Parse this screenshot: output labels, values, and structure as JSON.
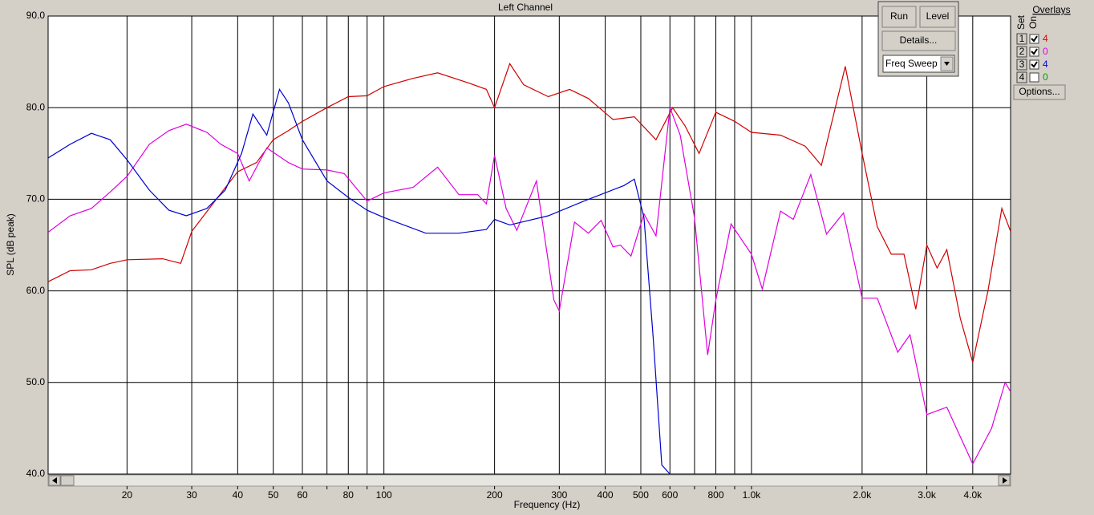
{
  "chart_data": {
    "type": "line",
    "title": "Left Channel",
    "x_label": "Frequency (Hz)",
    "y_label": "SPL (dB peak)",
    "xscale": "log",
    "xlim": [
      12.2,
      5070
    ],
    "ylim": [
      40,
      90
    ],
    "grid": true,
    "xticks": [
      20,
      30,
      40,
      50,
      60,
      80,
      100,
      200,
      300,
      400,
      500,
      600,
      800,
      {
        "value": 1000,
        "label": "1.0k"
      },
      {
        "value": 2000,
        "label": "2.0k"
      },
      {
        "value": 3000,
        "label": "3.0k"
      },
      {
        "value": 4000,
        "label": "4.0k"
      }
    ],
    "minor_xticks": [
      70,
      90,
      700,
      900
    ],
    "yticks": [
      {
        "value": 40,
        "label": "40.0"
      },
      {
        "value": 50,
        "label": "50.0"
      },
      {
        "value": 60,
        "label": "60.0"
      },
      {
        "value": 70,
        "label": "70.0"
      },
      {
        "value": 80,
        "label": "80.0"
      },
      {
        "value": 90,
        "label": "90.0"
      }
    ],
    "series": [
      {
        "color": "#d00000",
        "x": [
          12.2,
          14,
          16,
          18,
          20,
          25,
          28,
          30,
          35,
          40,
          45,
          50,
          55,
          60,
          70,
          80,
          90,
          100,
          120,
          140,
          170,
          190,
          200,
          220,
          240,
          280,
          320,
          360,
          420,
          480,
          550,
          610,
          660,
          720,
          800,
          900,
          1000,
          1200,
          1400,
          1550,
          1800,
          2000,
          2200,
          2400,
          2600,
          2800,
          3000,
          3200,
          3400,
          3700,
          4000,
          4400,
          4800,
          5070
        ],
        "values": [
          61.0,
          62.2,
          62.3,
          63.0,
          63.4,
          63.5,
          63.0,
          66.5,
          70,
          73,
          74,
          76.5,
          77.5,
          78.5,
          80,
          81.2,
          81.3,
          82.3,
          83.2,
          83.8,
          82.7,
          82.0,
          80.0,
          84.8,
          82.5,
          81.2,
          82.0,
          81.0,
          78.7,
          79.0,
          76.5,
          80.0,
          78,
          75.0,
          79.5,
          78.5,
          77.3,
          77.0,
          75.8,
          73.7,
          84.5,
          75,
          67,
          64,
          64,
          58,
          65,
          62.5,
          64.5,
          57,
          52.2,
          60,
          69,
          66.5
        ]
      },
      {
        "color": "#e000e0",
        "x": [
          12.2,
          14,
          16,
          18,
          20,
          23,
          26,
          29,
          33,
          36,
          40,
          43,
          48,
          55,
          60,
          70,
          78,
          90,
          100,
          120,
          140,
          160,
          180,
          190,
          200,
          215,
          230,
          260,
          290,
          300,
          330,
          360,
          390,
          420,
          440,
          470,
          510,
          550,
          600,
          640,
          700,
          760,
          800,
          880,
          1000,
          1070,
          1200,
          1300,
          1450,
          1600,
          1780,
          2000,
          2200,
          2500,
          2700,
          3000,
          3400,
          4000,
          4500,
          4900,
          5070
        ],
        "values": [
          66.4,
          68.2,
          69.0,
          70.8,
          72.5,
          76,
          77.5,
          78.2,
          77.3,
          76,
          75,
          72,
          75.6,
          74,
          73.3,
          73.2,
          72.8,
          69.8,
          70.7,
          71.3,
          73.5,
          70.5,
          70.5,
          69.5,
          74.8,
          69,
          66.6,
          72,
          59,
          57.8,
          67.5,
          66.3,
          67.7,
          64.8,
          65,
          63.8,
          68.4,
          66,
          80,
          77,
          68,
          53,
          59,
          67.3,
          64,
          60.2,
          68.7,
          67.8,
          72.7,
          66.2,
          68.5,
          59.2,
          59.2,
          53.3,
          55.2,
          46.5,
          47.3,
          41.1,
          45,
          50,
          49
        ]
      },
      {
        "color": "#0000d0",
        "x": [
          12.2,
          14,
          16,
          18,
          20,
          23,
          26,
          29,
          33,
          37,
          41,
          44,
          48,
          52,
          55,
          60,
          70,
          80,
          90,
          100,
          130,
          160,
          190,
          200,
          220,
          280,
          350,
          450,
          480,
          510,
          540,
          570,
          600,
          5070
        ],
        "values": [
          74.5,
          76,
          77.2,
          76.5,
          74.3,
          71,
          68.8,
          68.2,
          69,
          71,
          75,
          79.3,
          77,
          82,
          80.5,
          76.5,
          72,
          70.2,
          68.8,
          68,
          66.3,
          66.3,
          66.7,
          67.8,
          67.2,
          68.2,
          69.8,
          71.5,
          72.2,
          68,
          55,
          41,
          40,
          40
        ]
      }
    ]
  },
  "controls": {
    "run": "Run",
    "level": "Level",
    "details": "Details...",
    "mode": "Freq Sweep",
    "options": "Options..."
  },
  "overlays": {
    "title": "Overlays",
    "set_header": "Set",
    "on_header": "On",
    "rows": [
      {
        "set": "1",
        "on": true,
        "label": "4",
        "color": "#e00000"
      },
      {
        "set": "2",
        "on": true,
        "label": "0",
        "color": "#e000e0"
      },
      {
        "set": "3",
        "on": true,
        "label": "4",
        "color": "#0000e0"
      },
      {
        "set": "4",
        "on": false,
        "label": "0",
        "color": "#00a000"
      }
    ]
  }
}
